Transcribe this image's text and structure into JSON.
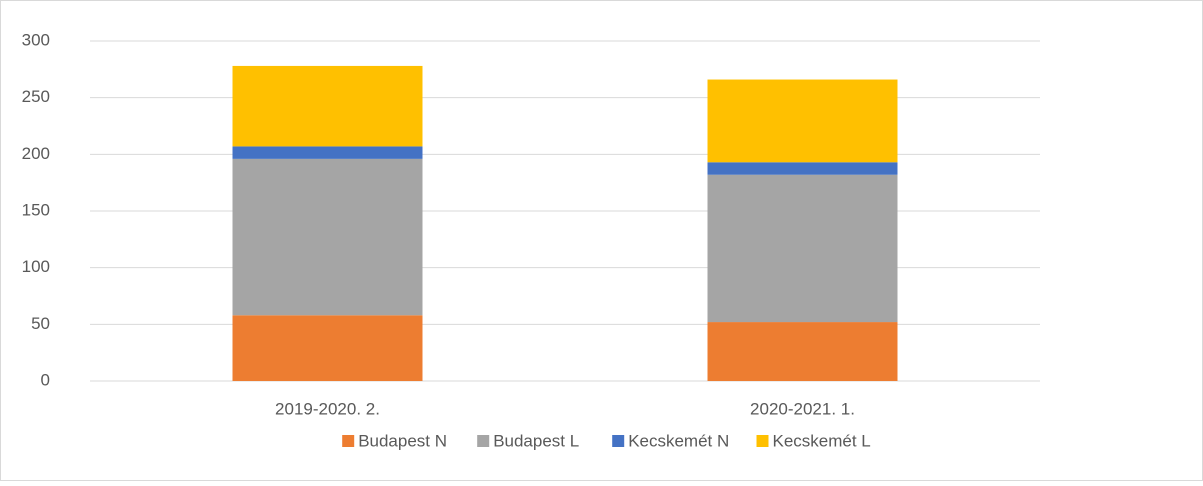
{
  "chart_data": {
    "type": "stacked_bar",
    "categories": [
      "2019-2020. 2.",
      "2020-2021. 1."
    ],
    "series": [
      {
        "name": "Budapest N",
        "color": "#ed7d31",
        "values": [
          58,
          52
        ]
      },
      {
        "name": "Budapest L",
        "color": "#a5a5a5",
        "values": [
          138,
          130
        ]
      },
      {
        "name": "Kecskemét N",
        "color": "#4472c4",
        "values": [
          11,
          11
        ]
      },
      {
        "name": "Kecskemét L",
        "color": "#ffc000",
        "values": [
          71,
          73
        ]
      }
    ],
    "ylim": [
      0,
      300
    ],
    "yticks": [
      0,
      50,
      100,
      150,
      200,
      250,
      300
    ],
    "grid": true,
    "legend": "bottom"
  }
}
